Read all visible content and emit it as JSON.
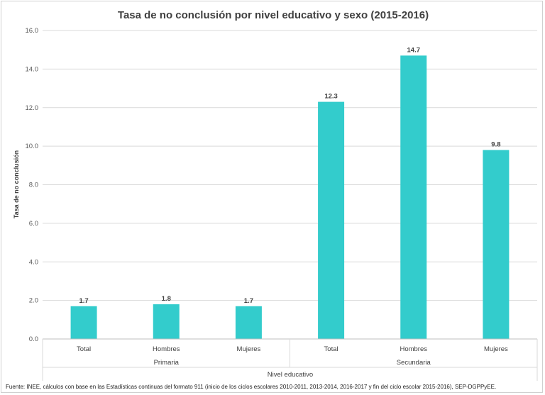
{
  "chart_data": {
    "type": "bar",
    "title": "Tasa de no conclusión por nivel educativo y sexo (2015-2016)",
    "ylabel": "Tasa de no conclusión",
    "xlabel": "Nivel educativo",
    "ylim": [
      0,
      16
    ],
    "yticks": [
      "0.0",
      "2.0",
      "4.0",
      "6.0",
      "8.0",
      "10.0",
      "12.0",
      "14.0",
      "16.0"
    ],
    "ytick_values": [
      0,
      2,
      4,
      6,
      8,
      10,
      12,
      14,
      16
    ],
    "groups": [
      {
        "label": "Primaria",
        "categories": [
          "Total",
          "Hombres",
          "Mujeres"
        ]
      },
      {
        "label": "Secundaria",
        "categories": [
          "Total",
          "Hombres",
          "Mujeres"
        ]
      }
    ],
    "categories": [
      "Total",
      "Hombres",
      "Mujeres",
      "Total",
      "Hombres",
      "Mujeres"
    ],
    "values": [
      1.7,
      1.8,
      1.7,
      12.3,
      14.7,
      9.8
    ],
    "value_labels": [
      "1.7",
      "1.8",
      "1.7",
      "12.3",
      "14.7",
      "9.8"
    ],
    "bar_color": "#33CCCC",
    "grid": true,
    "legend": "none",
    "source": "Fuente: INEE, cálculos con base en las Estadísticas continuas del formato 911 (inicio de los ciclos escolares 2010-2011, 2013-2014, 2016-2017 y fin del ciclo escolar 2015-2016), SEP-DGPPyEE."
  }
}
